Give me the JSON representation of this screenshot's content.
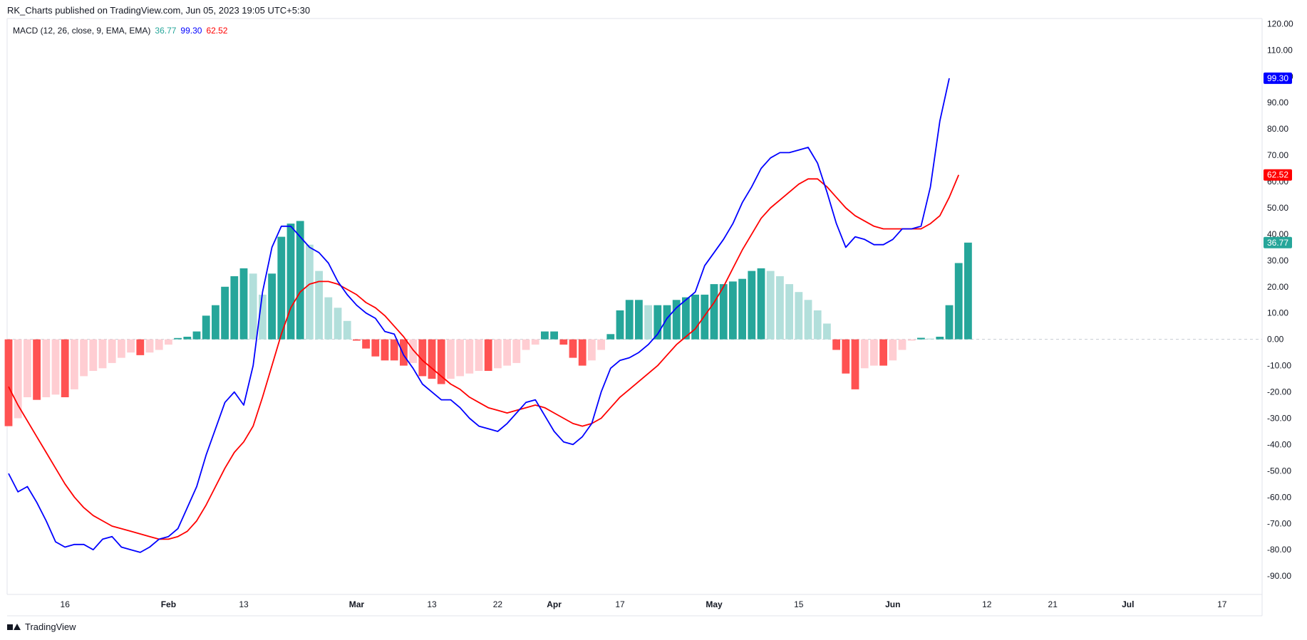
{
  "header": {
    "text": "RK_Charts published on TradingView.com, Jun 05, 2023 19:05 UTC+5:30"
  },
  "legend": {
    "name": "MACD (12, 26, close, 9, EMA, EMA)",
    "hist_value": "36.77",
    "macd_value": "99.30",
    "signal_value": "62.52"
  },
  "footer": {
    "brand": "TradingView"
  },
  "colors": {
    "macd_line": "#0000ff",
    "signal_line": "#ff0000",
    "hist_up_strong": "#26a69a",
    "hist_up_weak": "#b2dfdb",
    "hist_down_strong": "#ff5252",
    "hist_down_weak": "#ffcdd2"
  },
  "chart_data": {
    "type": "line",
    "title": "MACD (12, 26, close, 9, EMA, EMA)",
    "ylim": [
      -97,
      122
    ],
    "yticks": [
      "120.00",
      "110.00",
      "100.00",
      "90.00",
      "80.00",
      "70.00",
      "60.00",
      "50.00",
      "40.00",
      "30.00",
      "20.00",
      "10.00",
      "0.00",
      "-10.00",
      "-20.00",
      "-30.00",
      "-40.00",
      "-50.00",
      "-60.00",
      "-70.00",
      "-80.00",
      "-90.00"
    ],
    "xticks": [
      {
        "label": "16",
        "i": 6
      },
      {
        "label": "Feb",
        "i": 17
      },
      {
        "label": "13",
        "i": 25
      },
      {
        "label": "Mar",
        "i": 37
      },
      {
        "label": "13",
        "i": 45
      },
      {
        "label": "22",
        "i": 52
      },
      {
        "label": "Apr",
        "i": 58
      },
      {
        "label": "17",
        "i": 65
      },
      {
        "label": "May",
        "i": 75
      },
      {
        "label": "15",
        "i": 84
      },
      {
        "label": "Jun",
        "i": 94
      },
      {
        "label": "12",
        "i": 104
      },
      {
        "label": "21",
        "i": 111
      },
      {
        "label": "Jul",
        "i": 119
      },
      {
        "label": "17",
        "i": 129
      }
    ],
    "price_labels": [
      {
        "value": "99.30",
        "y": 99.3,
        "color": "#0000ff"
      },
      {
        "value": "62.52",
        "y": 62.52,
        "color": "#ff0000"
      },
      {
        "value": "36.77",
        "y": 36.77,
        "color": "#26a69a"
      }
    ],
    "series": [
      {
        "name": "MACD",
        "values": [
          -51,
          -58,
          -56,
          -62,
          -69,
          -77,
          -79,
          -78,
          -78,
          -80,
          -76,
          -75,
          -79,
          -80,
          -81,
          -79,
          -76,
          -75,
          -72,
          -64,
          -56,
          -44,
          -34,
          -24,
          -20,
          -25,
          -10,
          18,
          35,
          43,
          43,
          39,
          35,
          33,
          29,
          22,
          17,
          13,
          10,
          8,
          3,
          2,
          -6,
          -11,
          -17,
          -20,
          -23,
          -23,
          -26,
          -30,
          -33,
          -34,
          -35,
          -32,
          -28,
          -24,
          -23,
          -29,
          -35,
          -39,
          -40,
          -37,
          -32,
          -20,
          -11,
          -8,
          -7,
          -5,
          -2,
          2,
          8,
          12,
          15,
          18,
          28,
          33,
          38,
          44,
          52,
          58,
          65,
          69,
          71,
          71,
          72,
          73,
          67,
          56,
          44,
          35,
          39,
          38,
          36,
          36,
          38,
          42,
          42,
          43,
          58,
          83,
          99.3
        ]
      },
      {
        "name": "Signal",
        "values": [
          -18,
          -25,
          -31,
          -37,
          -43,
          -49,
          -55,
          -60,
          -64,
          -67,
          -69,
          -71,
          -72,
          -73,
          -74,
          -75,
          -76,
          -76,
          -75,
          -73,
          -69,
          -63,
          -56,
          -49,
          -43,
          -39,
          -33,
          -22,
          -10,
          2,
          12,
          18,
          21,
          22,
          22,
          21,
          19,
          17,
          14,
          12,
          9,
          5,
          1,
          -4,
          -8,
          -11,
          -14,
          -17,
          -19,
          -22,
          -24,
          -26,
          -27,
          -28,
          -27,
          -26,
          -25,
          -26,
          -28,
          -30,
          -32,
          -33,
          -32,
          -30,
          -26,
          -22,
          -19,
          -16,
          -13,
          -10,
          -6,
          -2,
          1,
          4,
          9,
          14,
          20,
          27,
          34,
          40,
          46,
          50,
          53,
          56,
          59,
          61,
          61,
          58,
          54,
          50,
          47,
          45,
          43,
          42,
          42,
          42,
          42,
          42,
          44,
          47,
          54,
          62.52
        ]
      },
      {
        "name": "Histogram",
        "values": [
          -33,
          -30,
          -22,
          -23,
          -22,
          -21,
          -22,
          -19,
          -14,
          -12,
          -11,
          -9,
          -7,
          -5,
          -6,
          -5,
          -4,
          -2,
          0.5,
          1,
          3,
          9,
          13,
          20,
          24,
          27,
          25,
          17,
          25,
          39,
          44,
          45,
          36,
          26,
          16,
          12,
          7,
          -0.5,
          -3.5,
          -6.5,
          -8,
          -8,
          -10,
          -9,
          -14,
          -15,
          -17,
          -15,
          -14,
          -13,
          -12,
          -12,
          -11,
          -10,
          -9,
          -4,
          -2,
          3,
          3,
          -2,
          -7,
          -10,
          -8,
          -4,
          2,
          11,
          15,
          15,
          13,
          13,
          13,
          15,
          16,
          17,
          17,
          21,
          21,
          22,
          23,
          26,
          27,
          26,
          24,
          21,
          18,
          15,
          11,
          6,
          -4,
          -13,
          -19,
          -11,
          -10,
          -10,
          -8,
          -4,
          -0.5,
          0.6,
          0.3,
          1,
          13,
          29,
          36.77
        ]
      }
    ]
  }
}
